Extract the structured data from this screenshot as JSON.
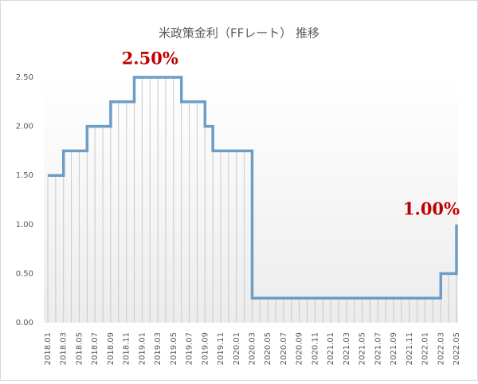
{
  "chart_data": {
    "type": "step",
    "title": "米政策金利（FFレート） 推移",
    "categories": [
      "2018.01",
      null,
      "2018.03",
      null,
      "2018.05",
      null,
      "2018.07",
      null,
      "2018.09",
      null,
      "2018.11",
      null,
      "2019.01",
      null,
      "2019.03",
      null,
      "2019.05",
      null,
      "2019.07",
      null,
      "2019.09",
      null,
      "2019.11",
      null,
      "2020.01",
      null,
      "2020.03",
      null,
      "2020.05",
      null,
      "2020.07",
      null,
      "2020.09",
      null,
      "2020.11",
      null,
      "2021.01",
      null,
      "2021.03",
      null,
      "2021.05",
      null,
      "2021.07",
      null,
      "2021.09",
      null,
      "2021.11",
      null,
      "2022.01",
      null,
      "2022.03",
      null,
      "2022.05"
    ],
    "values": [
      1.5,
      1.5,
      1.75,
      1.75,
      1.75,
      2.0,
      2.0,
      2.0,
      2.25,
      2.25,
      2.25,
      2.5,
      2.5,
      2.5,
      2.5,
      2.5,
      2.5,
      2.25,
      2.25,
      2.25,
      2.0,
      1.75,
      1.75,
      1.75,
      1.75,
      1.75,
      0.25,
      0.25,
      0.25,
      0.25,
      0.25,
      0.25,
      0.25,
      0.25,
      0.25,
      0.25,
      0.25,
      0.25,
      0.25,
      0.25,
      0.25,
      0.25,
      0.25,
      0.25,
      0.25,
      0.25,
      0.25,
      0.25,
      0.25,
      0.25,
      0.5,
      0.5,
      1.0
    ],
    "value_labels": [
      null,
      null,
      null,
      null,
      null,
      null,
      null,
      null,
      null,
      null,
      null,
      null,
      null,
      "2.50%",
      null,
      null,
      null,
      null,
      null,
      null,
      null,
      null,
      null,
      null,
      null,
      null,
      null,
      null,
      null,
      null,
      null,
      null,
      null,
      null,
      null,
      null,
      null,
      null,
      null,
      null,
      null,
      null,
      null,
      null,
      null,
      null,
      null,
      null,
      null,
      null,
      null,
      null,
      "1.00%"
    ],
    "color": "#6b9dc6",
    "ylim": [
      0,
      2.5
    ],
    "yticks": [
      {
        "value": 0,
        "label": "0.00"
      },
      {
        "value": 0.5,
        "label": "0.50"
      },
      {
        "value": 1,
        "label": "1.00"
      },
      {
        "value": 1.5,
        "label": "1.50"
      },
      {
        "value": 2,
        "label": "2.00"
      },
      {
        "value": 2.5,
        "label": "2.50"
      }
    ],
    "drop_lines": true
  }
}
